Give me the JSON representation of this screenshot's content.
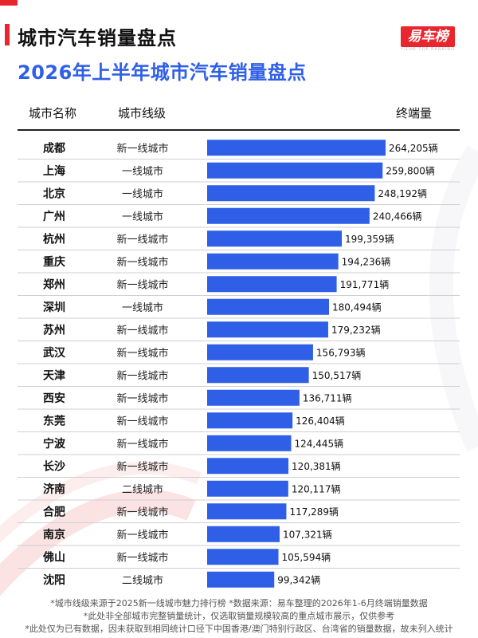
{
  "header": {
    "title": "城市汽车销量盘点",
    "subtitle": "2026年上半年城市汽车销量盘点",
    "logo_text": "易车榜",
    "logo_subtext": "YICHE TOP RANKING"
  },
  "table_headers": {
    "city": "城市名称",
    "tier": "城市线级",
    "sales": "终端量"
  },
  "unit_suffix": "辆",
  "colors": {
    "bar": "#2f5fe6",
    "accent": "#e8262d",
    "row_divider": "#cfcfcf"
  },
  "chart_data": {
    "type": "bar",
    "orientation": "horizontal",
    "categories": [
      "成都",
      "上海",
      "北京",
      "广州",
      "杭州",
      "重庆",
      "郑州",
      "深圳",
      "苏州",
      "武汉",
      "天津",
      "西安",
      "东莞",
      "宁波",
      "长沙",
      "济南",
      "合肥",
      "南京",
      "佛山",
      "沈阳"
    ],
    "tiers": [
      "新一线城市",
      "一线城市",
      "一线城市",
      "一线城市",
      "新一线城市",
      "新一线城市",
      "新一线城市",
      "一线城市",
      "新一线城市",
      "新一线城市",
      "新一线城市",
      "新一线城市",
      "新一线城市",
      "新一线城市",
      "新一线城市",
      "二线城市",
      "新一线城市",
      "新一线城市",
      "新一线城市",
      "二线城市"
    ],
    "values": [
      264205,
      259800,
      248192,
      240466,
      199359,
      194236,
      191771,
      180494,
      179232,
      156793,
      150517,
      136711,
      126404,
      124445,
      120381,
      120117,
      117289,
      107321,
      105594,
      99342
    ],
    "value_labels": [
      "264,205辆",
      "259,800辆",
      "248,192辆",
      "240,466辆",
      "199,359辆",
      "194,236辆",
      "191,771辆",
      "180,494辆",
      "179,232辆",
      "156,793辆",
      "150,517辆",
      "136,711辆",
      "126,404辆",
      "124,445辆",
      "120,381辆",
      "120,117辆",
      "117,289辆",
      "107,321辆",
      "105,594辆",
      "99,342辆"
    ],
    "title": "2026年上半年城市汽车销量盘点",
    "xlabel": "",
    "ylabel": "",
    "xlim": [
      0,
      264205
    ],
    "grid": false,
    "legend": "none"
  },
  "footer": {
    "line1": "*城市线级来源于2025新一线城市魅力排行榜 *数据来源：易车整理的2026年1-6月终端销量数据",
    "line2": "*此处非全部城市完整销量统计，仅选取销量规模较高的重点城市展示，仅供参考",
    "line3": "*此处仅为已有数据，因未获取到相同统计口径下中国香港/澳门特别行政区、台湾省的销量数据，故未列入统计"
  }
}
